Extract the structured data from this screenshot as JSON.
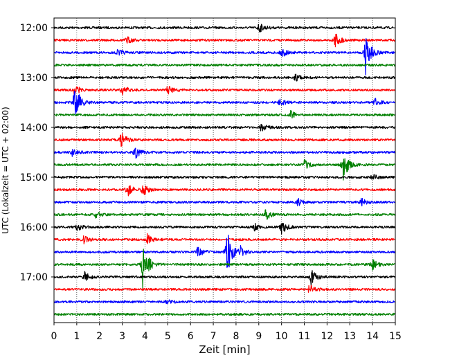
{
  "chart_data": {
    "type": "line",
    "title": "",
    "xlabel": "Zeit  [min]",
    "ylabel": "UTC (Lokalzeit = UTC + 02:00)",
    "xlim": [
      0,
      15
    ],
    "x_ticks": [
      "0",
      "1",
      "2",
      "3",
      "4",
      "5",
      "6",
      "7",
      "8",
      "9",
      "10",
      "11",
      "12",
      "13",
      "14",
      "15"
    ],
    "y_ticks": [
      "12:00",
      "13:00",
      "14:00",
      "15:00",
      "16:00",
      "17:00"
    ],
    "grid": "vertical-dotted",
    "colors": [
      "#000000",
      "#ff0000",
      "#0000ff",
      "#008000"
    ],
    "traces": [
      {
        "start": "12:00",
        "color": "#000000",
        "events": [
          {
            "t": 9.0,
            "amp": 0.4
          }
        ]
      },
      {
        "start": "12:15",
        "color": "#ff0000",
        "events": [
          {
            "t": 12.35,
            "amp": 0.7
          },
          {
            "t": 3.2,
            "amp": 0.3
          }
        ]
      },
      {
        "start": "12:30",
        "color": "#0000ff",
        "events": [
          {
            "t": 13.7,
            "amp": 1.8
          },
          {
            "t": 10.0,
            "amp": 0.4
          },
          {
            "t": 2.8,
            "amp": 0.3
          }
        ]
      },
      {
        "start": "12:45",
        "color": "#008000",
        "events": []
      },
      {
        "start": "13:00",
        "color": "#000000",
        "events": [
          {
            "t": 10.6,
            "amp": 0.3
          }
        ]
      },
      {
        "start": "13:15",
        "color": "#ff0000",
        "events": [
          {
            "t": 3.0,
            "amp": 0.45
          },
          {
            "t": 5.0,
            "amp": 0.45
          },
          {
            "t": 0.9,
            "amp": 0.5
          }
        ]
      },
      {
        "start": "13:30",
        "color": "#0000ff",
        "events": [
          {
            "t": 0.9,
            "amp": 1.8
          },
          {
            "t": 9.9,
            "amp": 0.35
          },
          {
            "t": 14.1,
            "amp": 0.3
          }
        ]
      },
      {
        "start": "13:45",
        "color": "#008000",
        "events": [
          {
            "t": 10.4,
            "amp": 0.3
          }
        ]
      },
      {
        "start": "14:00",
        "color": "#000000",
        "events": [
          {
            "t": 9.1,
            "amp": 0.35
          }
        ]
      },
      {
        "start": "14:15",
        "color": "#ff0000",
        "events": [
          {
            "t": 2.95,
            "amp": 0.75
          }
        ]
      },
      {
        "start": "14:30",
        "color": "#0000ff",
        "events": [
          {
            "t": 3.55,
            "amp": 0.55
          },
          {
            "t": 0.8,
            "amp": 0.3
          }
        ]
      },
      {
        "start": "14:45",
        "color": "#008000",
        "events": [
          {
            "t": 12.7,
            "amp": 1.4
          },
          {
            "t": 11.0,
            "amp": 0.4
          }
        ]
      },
      {
        "start": "15:00",
        "color": "#000000",
        "events": [
          {
            "t": 14.0,
            "amp": 0.3
          }
        ]
      },
      {
        "start": "15:15",
        "color": "#ff0000",
        "events": [
          {
            "t": 3.2,
            "amp": 0.6
          },
          {
            "t": 3.9,
            "amp": 0.5
          }
        ]
      },
      {
        "start": "15:30",
        "color": "#0000ff",
        "events": [
          {
            "t": 10.7,
            "amp": 0.3
          },
          {
            "t": 13.5,
            "amp": 0.3
          }
        ]
      },
      {
        "start": "15:45",
        "color": "#008000",
        "events": [
          {
            "t": 9.3,
            "amp": 0.45
          },
          {
            "t": 1.8,
            "amp": 0.25
          }
        ]
      },
      {
        "start": "16:00",
        "color": "#000000",
        "events": [
          {
            "t": 10.0,
            "amp": 0.55
          },
          {
            "t": 1.0,
            "amp": 0.35
          },
          {
            "t": 8.8,
            "amp": 0.3
          }
        ]
      },
      {
        "start": "16:15",
        "color": "#ff0000",
        "events": [
          {
            "t": 4.1,
            "amp": 0.4
          },
          {
            "t": 1.3,
            "amp": 0.3
          }
        ]
      },
      {
        "start": "16:30",
        "color": "#0000ff",
        "events": [
          {
            "t": 7.6,
            "amp": 2.0
          },
          {
            "t": 6.3,
            "amp": 0.5
          },
          {
            "t": 8.2,
            "amp": 0.4
          }
        ]
      },
      {
        "start": "16:45",
        "color": "#008000",
        "events": [
          {
            "t": 3.9,
            "amp": 2.3
          },
          {
            "t": 14.0,
            "amp": 0.4
          }
        ]
      },
      {
        "start": "17:00",
        "color": "#000000",
        "events": [
          {
            "t": 11.3,
            "amp": 0.75
          },
          {
            "t": 1.35,
            "amp": 0.4
          }
        ]
      },
      {
        "start": "17:15",
        "color": "#ff0000",
        "events": [
          {
            "t": 11.2,
            "amp": 0.5
          }
        ]
      },
      {
        "start": "17:30",
        "color": "#0000ff",
        "events": [
          {
            "t": 4.9,
            "amp": 0.25
          }
        ]
      },
      {
        "start": "17:45",
        "color": "#008000",
        "events": []
      }
    ]
  }
}
